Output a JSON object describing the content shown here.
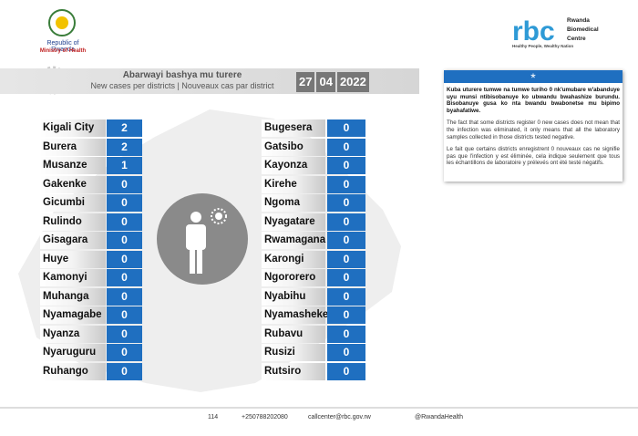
{
  "header": {
    "org": "Republic of Rwanda",
    "ministry": "Ministry of Health",
    "rbc_logo": "rbc",
    "rbc_name": "Rwanda Biomedical Centre",
    "rbc_tagline": "Healthy People, Wealthy Nation"
  },
  "banner": {
    "title": "Abarwayi bashya mu turere",
    "subtitle": "New cases per districts  |  Nouveaux cas par district",
    "date": [
      "27",
      "04",
      "2022"
    ]
  },
  "table": {
    "left": [
      [
        "Kigali City",
        2
      ],
      [
        "Burera",
        2
      ],
      [
        "Musanze",
        1
      ],
      [
        "Gakenke",
        0
      ],
      [
        "Gicumbi",
        0
      ],
      [
        "Rulindo",
        0
      ],
      [
        "Gisagara",
        0
      ],
      [
        "Huye",
        0
      ],
      [
        "Kamonyi",
        0
      ],
      [
        "Muhanga",
        0
      ],
      [
        "Nyamagabe",
        0
      ],
      [
        "Nyanza",
        0
      ],
      [
        "Nyaruguru",
        0
      ],
      [
        "Ruhango",
        0
      ]
    ],
    "right": [
      [
        "Bugesera",
        0
      ],
      [
        "Gatsibo",
        0
      ],
      [
        "Kayonza",
        0
      ],
      [
        "Kirehe",
        0
      ],
      [
        "Ngoma",
        0
      ],
      [
        "Nyagatare",
        0
      ],
      [
        "Rwamagana",
        0
      ],
      [
        "Karongi",
        0
      ],
      [
        "Ngororero",
        0
      ],
      [
        "Nyabihu",
        0
      ],
      [
        "Nyamasheke",
        0
      ],
      [
        "Rubavu",
        0
      ],
      [
        "Rusizi",
        0
      ],
      [
        "Rutsiro",
        0
      ]
    ]
  },
  "note": {
    "star": "*",
    "paragraphs": [
      "Kuba uturere tumwe na tumwe turiho 0 nk'umubare w'abanduye uyu munsi ntibisobanuye ko ubwandu bwahashize burundu. Bisobanuye gusa ko nta bwandu bwabonetse mu bipimo byahafatiwe.",
      "The fact that some districts register 0 new cases does not mean that the infection was eliminated, it only means that all the laboratory samples collected in those districts tested negative.",
      "Le fait que certains districts enregistrent 0 nouveaux cas ne signifie pas que l'infection y est éliminée, cela indique seulement que tous les échantillons de laboratoire y prélevés ont été testé négatifs."
    ]
  },
  "footer": {
    "hotline": "114",
    "phone": "+250788202080",
    "email": "callcenter@rbc.gov.rw",
    "social": "@RwandaHealth"
  }
}
